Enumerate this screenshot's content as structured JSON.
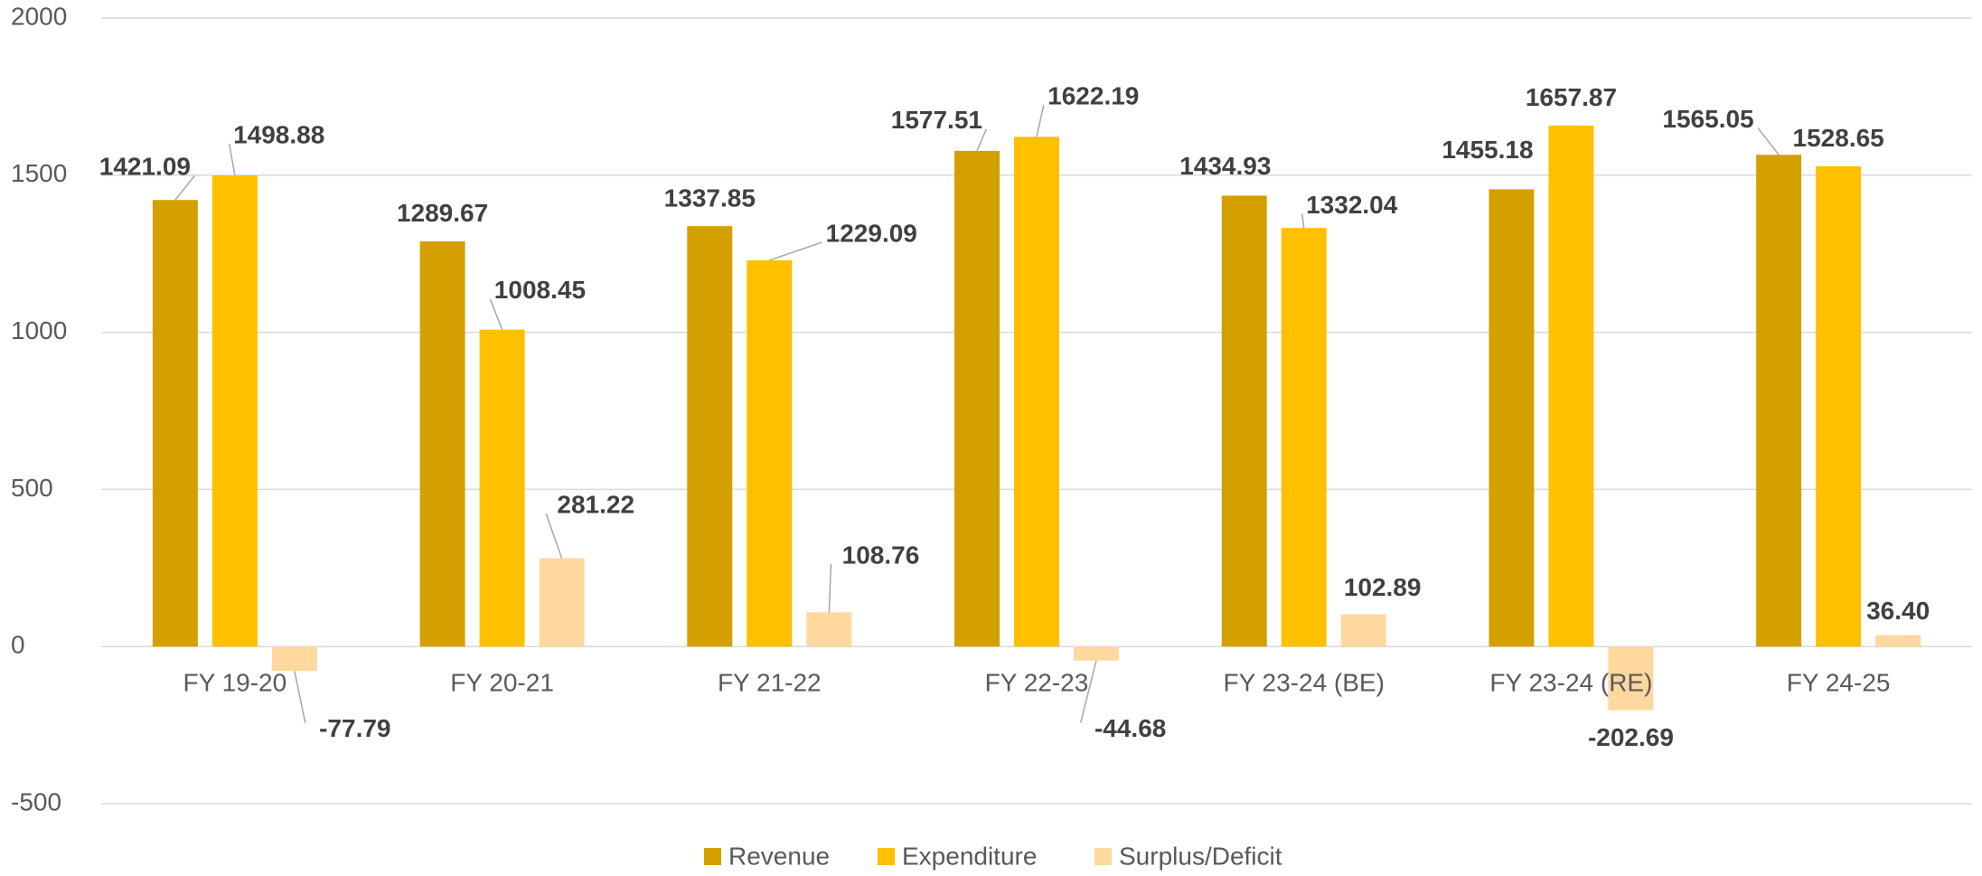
{
  "chart_data": {
    "type": "bar",
    "categories": [
      "FY 19-20",
      "FY 20-21",
      "FY 21-22",
      "FY 22-23",
      "FY 23-24 (BE)",
      "FY 23-24 (RE)",
      "FY 24-25"
    ],
    "series": [
      {
        "name": "Revenue",
        "color": "#d4a000",
        "values": [
          1421.09,
          1289.67,
          1337.85,
          1577.51,
          1434.93,
          1455.18,
          1565.05
        ],
        "value_labels": [
          "1421.09",
          "1289.67",
          "1337.85",
          "1577.51",
          "1434.93",
          "1455.18",
          "1565.05"
        ]
      },
      {
        "name": "Expenditure",
        "color": "#ffc000",
        "values": [
          1498.88,
          1008.45,
          1229.09,
          1622.19,
          1332.04,
          1657.87,
          1528.65
        ],
        "value_labels": [
          "1498.88",
          "1008.45",
          "1229.09",
          "1622.19",
          "1332.04",
          "1657.87",
          "1528.65"
        ]
      },
      {
        "name": "Surplus/Deficit",
        "color": "#ffd8a0",
        "values": [
          -77.79,
          281.22,
          108.76,
          -44.68,
          102.89,
          -202.69,
          36.4
        ],
        "value_labels": [
          "-77.79",
          "281.22",
          "108.76",
          "-44.68",
          "102.89",
          "-202.69",
          "36.40"
        ]
      }
    ],
    "ylim": [
      -500,
      2000
    ],
    "yticks": [
      -500,
      0,
      500,
      1000,
      1500,
      2000
    ],
    "grid": true,
    "legend": "bottom"
  }
}
